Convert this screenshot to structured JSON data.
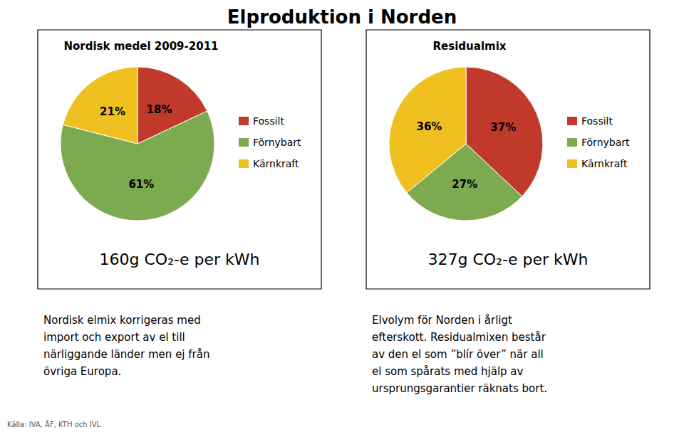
{
  "title": "Elproduktion i Norden",
  "annotations": [
    "Källa: IVA, ÅF, KTH och IVL"
  ],
  "chart_data": [
    {
      "type": "pie",
      "title": "Nordisk medel 2009-2011",
      "categories": [
        "Fossilt",
        "Förnybart",
        "Kärnkraft"
      ],
      "values": [
        18,
        61,
        21
      ],
      "value_labels": [
        "18%",
        "61%",
        "21%"
      ],
      "colors": [
        "#c0392b",
        "#7daa4f",
        "#f0c020"
      ],
      "data_labels": true,
      "legend": "right",
      "annotations": [
        "160g CO₂-e per kWh",
        "Nordisk elmix korrigeras med\nimport och export av el till\nnärliggande länder men ej från\növriga Europa."
      ]
    },
    {
      "type": "pie",
      "title": "Residualmix",
      "categories": [
        "Fossilt",
        "Förnybart",
        "Kärnkraft"
      ],
      "values": [
        37,
        27,
        36
      ],
      "value_labels": [
        "37%",
        "27%",
        "36%"
      ],
      "colors": [
        "#c0392b",
        "#7daa4f",
        "#f0c020"
      ],
      "data_labels": true,
      "legend": "right",
      "annotations": [
        "327g CO₂-e per kWh",
        "Elvolym för Norden i årligt\nefterskott. Residualmixen består\nav den el som ”blír över” när all\nel som spårats med hjälp av\nursprungsgarantier räknats bort."
      ]
    }
  ]
}
